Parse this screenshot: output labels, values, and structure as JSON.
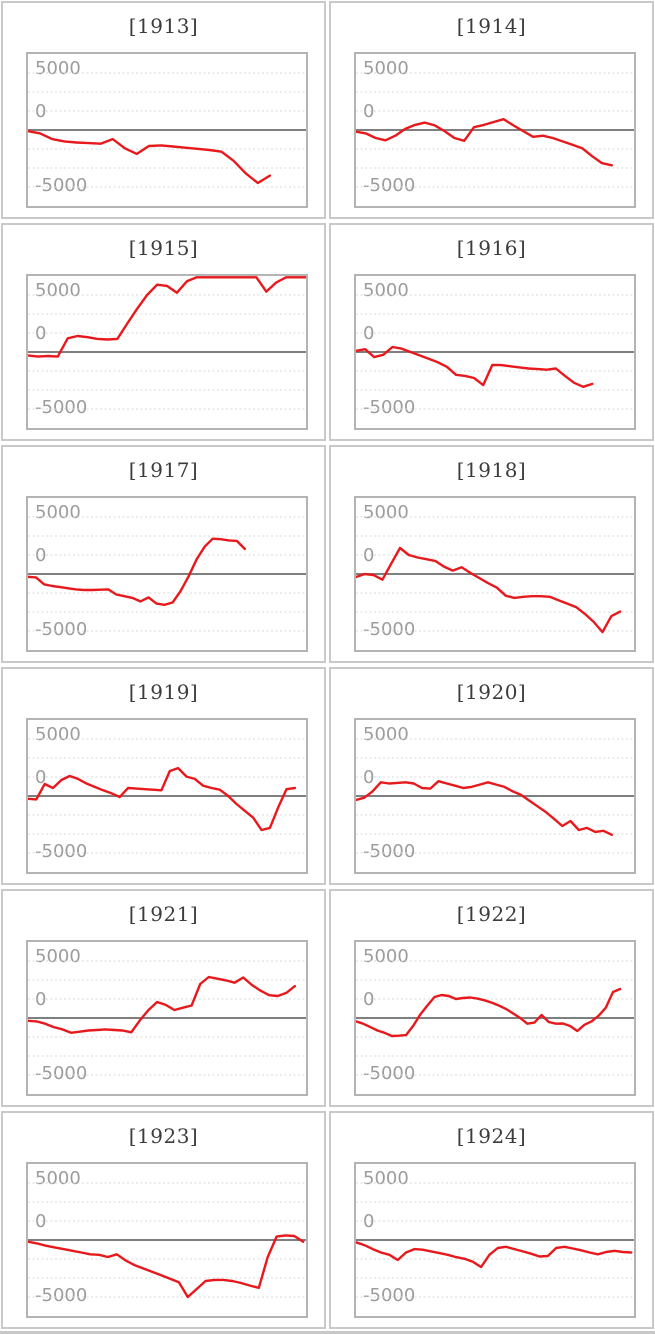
{
  "page": {
    "background": "#ffffff",
    "bottom_bar_color": "#c8c8c8"
  },
  "style": {
    "line_color": "#e8191c",
    "zero_line_color": "#7f7f7f",
    "grid_color": "#d9d9d9",
    "plot_border_color": "#b4b4b4",
    "cell_border_color": "#c9c9c9",
    "tick_label_color": "#9c9c9c",
    "title_color": "#3c3c3c"
  },
  "axis": {
    "tick_labels": [
      "5000",
      "0",
      "-5000"
    ],
    "tick_values": [
      5000,
      0,
      -5000
    ],
    "ylim": [
      -6670,
      6670
    ],
    "grid": true,
    "zero_line": true,
    "legend": "none",
    "xlabel": "",
    "ylabel": ""
  },
  "chart_data": [
    {
      "type": "line",
      "title": "[1913]",
      "x_span": 0.87,
      "values": [
        -100,
        -300,
        -800,
        -1000,
        -1100,
        -1150,
        -1200,
        -800,
        -1600,
        -2100,
        -1400,
        -1350,
        -1450,
        -1550,
        -1650,
        -1750,
        -1900,
        -2700,
        -3800,
        -4650,
        -4000
      ]
    },
    {
      "type": "line",
      "title": "[1914]",
      "x_span": 0.92,
      "values": [
        -150,
        -300,
        -700,
        -900,
        -500,
        100,
        450,
        650,
        400,
        -100,
        -700,
        -950,
        250,
        450,
        700,
        950,
        400,
        -100,
        -600,
        -500,
        -700,
        -1000,
        -1300,
        -1600,
        -2300,
        -2900,
        -3100
      ]
    },
    {
      "type": "line",
      "title": "[1915]",
      "x_span": 1.0,
      "values": [
        -300,
        -400,
        -350,
        -400,
        1200,
        1400,
        1300,
        1150,
        1100,
        1150,
        2500,
        3800,
        5000,
        5900,
        5800,
        5200,
        6200,
        6750,
        6800,
        6800,
        6800,
        6800,
        6800,
        6800,
        5300,
        6100,
        6750,
        6800,
        6800
      ]
    },
    {
      "type": "line",
      "title": "[1916]",
      "x_span": 0.85,
      "values": [
        100,
        250,
        -450,
        -250,
        440,
        300,
        0,
        -300,
        -600,
        -900,
        -1300,
        -2000,
        -2100,
        -2280,
        -2900,
        -1140,
        -1150,
        -1250,
        -1350,
        -1450,
        -1500,
        -1550,
        -1450,
        -2100,
        -2700,
        -3050,
        -2800
      ]
    },
    {
      "type": "line",
      "title": "[1917]",
      "x_span": 0.78,
      "values": [
        -250,
        -300,
        -900,
        -1050,
        -1150,
        -1250,
        -1350,
        -1400,
        -1400,
        -1380,
        -1350,
        -1800,
        -1950,
        -2100,
        -2400,
        -2050,
        -2600,
        -2700,
        -2500,
        -1500,
        -200,
        1300,
        2400,
        3100,
        3050,
        2950,
        2900,
        2200
      ]
    },
    {
      "type": "line",
      "title": "[1918]",
      "x_span": 0.95,
      "values": [
        -260,
        0,
        -100,
        -500,
        900,
        2280,
        1670,
        1450,
        1300,
        1150,
        650,
        300,
        600,
        100,
        -350,
        -800,
        -1200,
        -1900,
        -2100,
        -2000,
        -1950,
        -1950,
        -2000,
        -2300,
        -2600,
        -2900,
        -3500,
        -4200,
        -5100,
        -3700,
        -3300
      ]
    },
    {
      "type": "line",
      "title": "[1919]",
      "x_span": 0.96,
      "values": [
        -250,
        -300,
        1050,
        700,
        1400,
        1750,
        1500,
        1100,
        800,
        500,
        250,
        -100,
        700,
        650,
        600,
        550,
        500,
        2190,
        2450,
        1700,
        1500,
        900,
        700,
        550,
        0,
        -700,
        -1300,
        -1900,
        -2980,
        -2800,
        -1000,
        600,
        700
      ]
    },
    {
      "type": "line",
      "title": "[1920]",
      "x_span": 0.92,
      "values": [
        -350,
        -150,
        400,
        1200,
        1100,
        1150,
        1200,
        1100,
        700,
        650,
        1300,
        1100,
        900,
        700,
        800,
        1000,
        1200,
        1000,
        800,
        400,
        100,
        -400,
        -900,
        -1400,
        -2000,
        -2630,
        -2190,
        -2980,
        -2800,
        -3150,
        -3050,
        -3400
      ]
    },
    {
      "type": "line",
      "title": "[1921]",
      "x_span": 0.96,
      "values": [
        -250,
        -300,
        -500,
        -800,
        -1000,
        -1300,
        -1200,
        -1100,
        -1050,
        -1000,
        -1050,
        -1100,
        -1250,
        -200,
        700,
        1400,
        1150,
        700,
        900,
        1100,
        2980,
        3600,
        3450,
        3300,
        3100,
        3550,
        2900,
        2400,
        2000,
        1930,
        2200,
        2800
      ]
    },
    {
      "type": "line",
      "title": "[1922]",
      "x_span": 0.95,
      "values": [
        -300,
        -500,
        -800,
        -1100,
        -1300,
        -1580,
        -1550,
        -1500,
        -700,
        300,
        1100,
        1840,
        2020,
        1930,
        1670,
        1750,
        1800,
        1700,
        1550,
        1350,
        1100,
        800,
        400,
        0,
        -500,
        -400,
        260,
        -350,
        -500,
        -480,
        -700,
        -1140,
        -600,
        -300,
        200,
        900,
        2280,
        2540
      ]
    },
    {
      "type": "line",
      "title": "[1923]",
      "x_span": 0.99,
      "values": [
        -150,
        -300,
        -500,
        -650,
        -800,
        -950,
        -1100,
        -1250,
        -1300,
        -1490,
        -1250,
        -1800,
        -2200,
        -2500,
        -2800,
        -3100,
        -3400,
        -3700,
        -5000,
        -4300,
        -3600,
        -3500,
        -3500,
        -3600,
        -3770,
        -4000,
        -4200,
        -1500,
        300,
        400,
        350,
        -150
      ]
    },
    {
      "type": "line",
      "title": "[1924]",
      "x_span": 0.99,
      "values": [
        -200,
        -450,
        -800,
        -1100,
        -1300,
        -1750,
        -1100,
        -800,
        -850,
        -1000,
        -1150,
        -1300,
        -1500,
        -1650,
        -1900,
        -2370,
        -1300,
        -700,
        -600,
        -800,
        -1000,
        -1200,
        -1450,
        -1400,
        -700,
        -600,
        -750,
        -900,
        -1100,
        -1250,
        -1050,
        -950,
        -1050,
        -1100
      ]
    }
  ]
}
